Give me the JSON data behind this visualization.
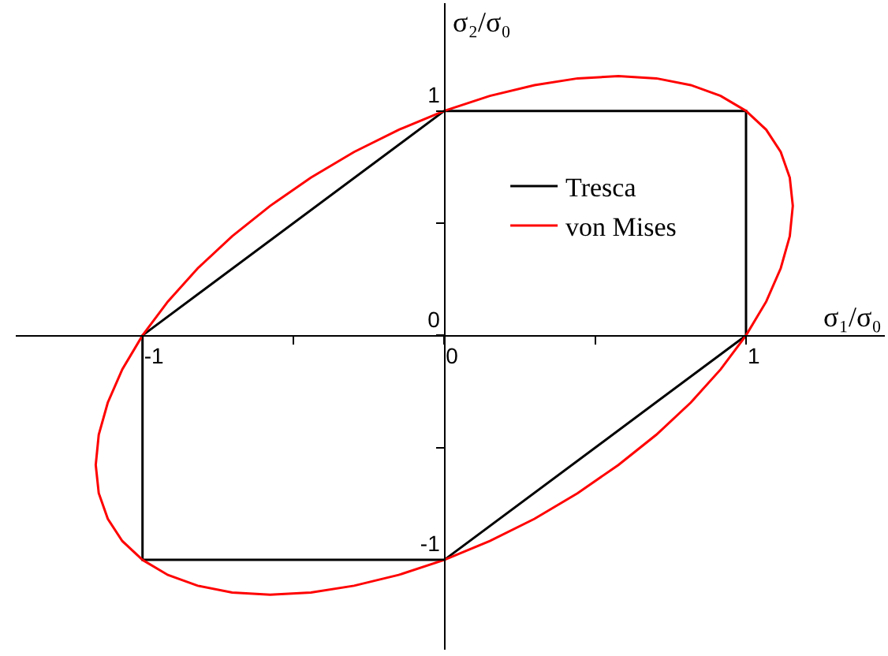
{
  "chart_data": {
    "type": "line",
    "xlabel": "σ₁/σ₀",
    "ylabel": "σ₂/σ₀",
    "xlim": [
      -1.42,
      1.46
    ],
    "ylim": [
      -1.4,
      1.48
    ],
    "xticks": [
      -1,
      {
        "value": -0.5,
        "label": null
      },
      0,
      {
        "value": 0.5,
        "label": null
      },
      1
    ],
    "yticks": [
      -1,
      {
        "value": -0.5,
        "label": null
      },
      0,
      {
        "value": 0.5,
        "label": null
      },
      1
    ],
    "legend": "right",
    "marker": "none",
    "line_style": "solid",
    "series": [
      {
        "name": "Tresca",
        "color": "#000000",
        "x": [
          0,
          1,
          1,
          0,
          -1,
          -1,
          0
        ],
        "values": [
          1,
          1,
          0,
          -1,
          -1,
          0,
          1
        ]
      },
      {
        "name": "von Mises",
        "color": "#ff0000",
        "x": [
          1,
          1.067,
          1.115,
          1.145,
          1.155,
          1.145,
          1.115,
          1.067,
          1.0,
          0.916,
          0.817,
          0.703,
          0.577,
          0.442,
          0.299,
          0.151,
          0,
          -0.151,
          -0.299,
          -0.442,
          -0.577,
          -0.703,
          -0.817,
          -0.916,
          -1,
          -1.067,
          -1.115,
          -1.145,
          -1.155,
          -1.145,
          -1.115,
          -1.067,
          -1,
          -0.916,
          -0.817,
          -0.703,
          -0.577,
          -0.442,
          -0.299,
          -0.151,
          0,
          0.151,
          0.299,
          0.442,
          0.577,
          0.703,
          0.817,
          0.916,
          1
        ],
        "values": [
          1,
          0.916,
          0.817,
          0.703,
          0.577,
          0.442,
          0.299,
          0.151,
          0,
          -0.151,
          -0.299,
          -0.442,
          -0.577,
          -0.703,
          -0.817,
          -0.916,
          -1,
          -1.067,
          -1.115,
          -1.145,
          -1.155,
          -1.145,
          -1.115,
          -1.067,
          -1,
          -0.916,
          -0.817,
          -0.703,
          -0.577,
          -0.442,
          -0.299,
          -0.151,
          0,
          0.151,
          0.299,
          0.442,
          0.577,
          0.703,
          0.817,
          0.916,
          1,
          1.067,
          1.115,
          1.145,
          1.155,
          1.145,
          1.115,
          1.067,
          1
        ]
      }
    ]
  }
}
